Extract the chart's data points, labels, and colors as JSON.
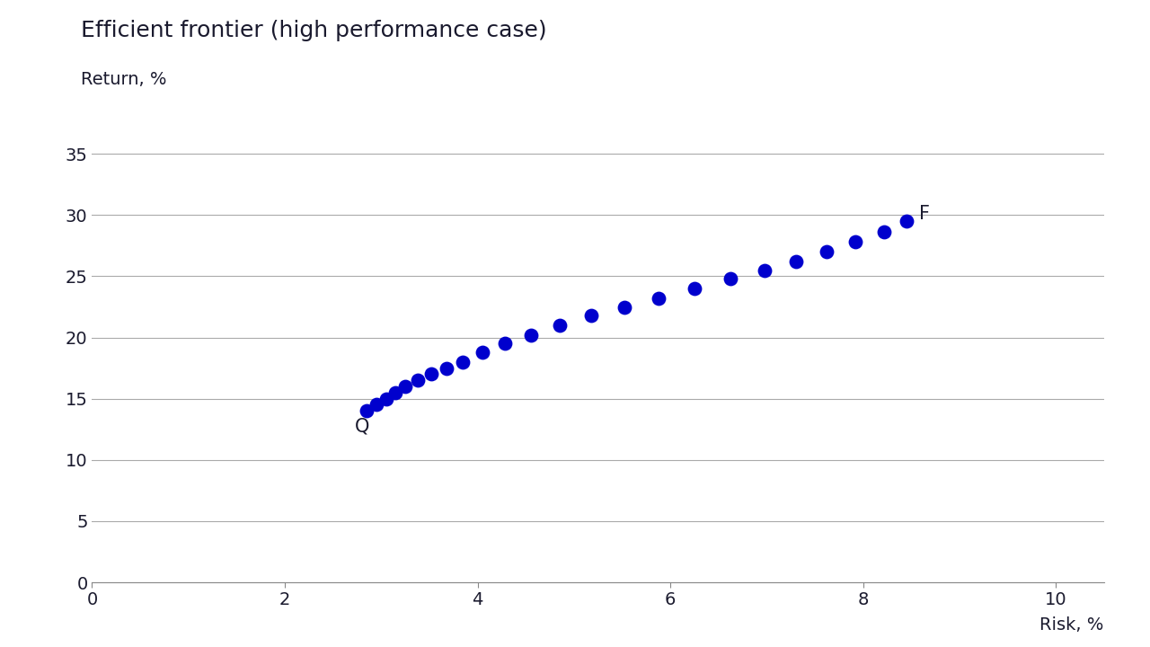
{
  "title": "Efficient frontier (high performance case)",
  "xlabel": "Risk, %",
  "ylabel": "Return, %",
  "xlim": [
    0,
    10.5
  ],
  "ylim": [
    0,
    37
  ],
  "xticks": [
    0,
    2,
    4,
    6,
    8,
    10
  ],
  "yticks": [
    0,
    5,
    10,
    15,
    20,
    25,
    30,
    35
  ],
  "dot_color": "#0000CD",
  "dot_size": 130,
  "background_color": "#ffffff",
  "title_color": "#1a1a2e",
  "label_color": "#1a1a2e",
  "risk": [
    2.85,
    2.95,
    3.05,
    3.15,
    3.25,
    3.38,
    3.52,
    3.68,
    3.85,
    4.05,
    4.28,
    4.55,
    4.85,
    5.18,
    5.52,
    5.88,
    6.25,
    6.62,
    6.98,
    7.3,
    7.62,
    7.92,
    8.22,
    8.45
  ],
  "return": [
    14.0,
    14.5,
    15.0,
    15.5,
    16.0,
    16.5,
    17.0,
    17.5,
    18.0,
    18.8,
    19.5,
    20.2,
    21.0,
    21.8,
    22.5,
    23.2,
    24.0,
    24.8,
    25.5,
    26.2,
    27.0,
    27.8,
    28.6,
    29.5
  ],
  "Q_label": "Q",
  "Q_x": 2.73,
  "Q_y": 13.5,
  "F_label": "F",
  "F_x": 8.58,
  "F_y": 30.8,
  "title_fontsize": 18,
  "ylabel_fontsize": 14,
  "xlabel_fontsize": 14,
  "tick_fontsize": 14,
  "annotation_fontsize": 15,
  "grid_color": "#aaaaaa",
  "grid_linewidth": 0.8,
  "spine_color": "#888888"
}
